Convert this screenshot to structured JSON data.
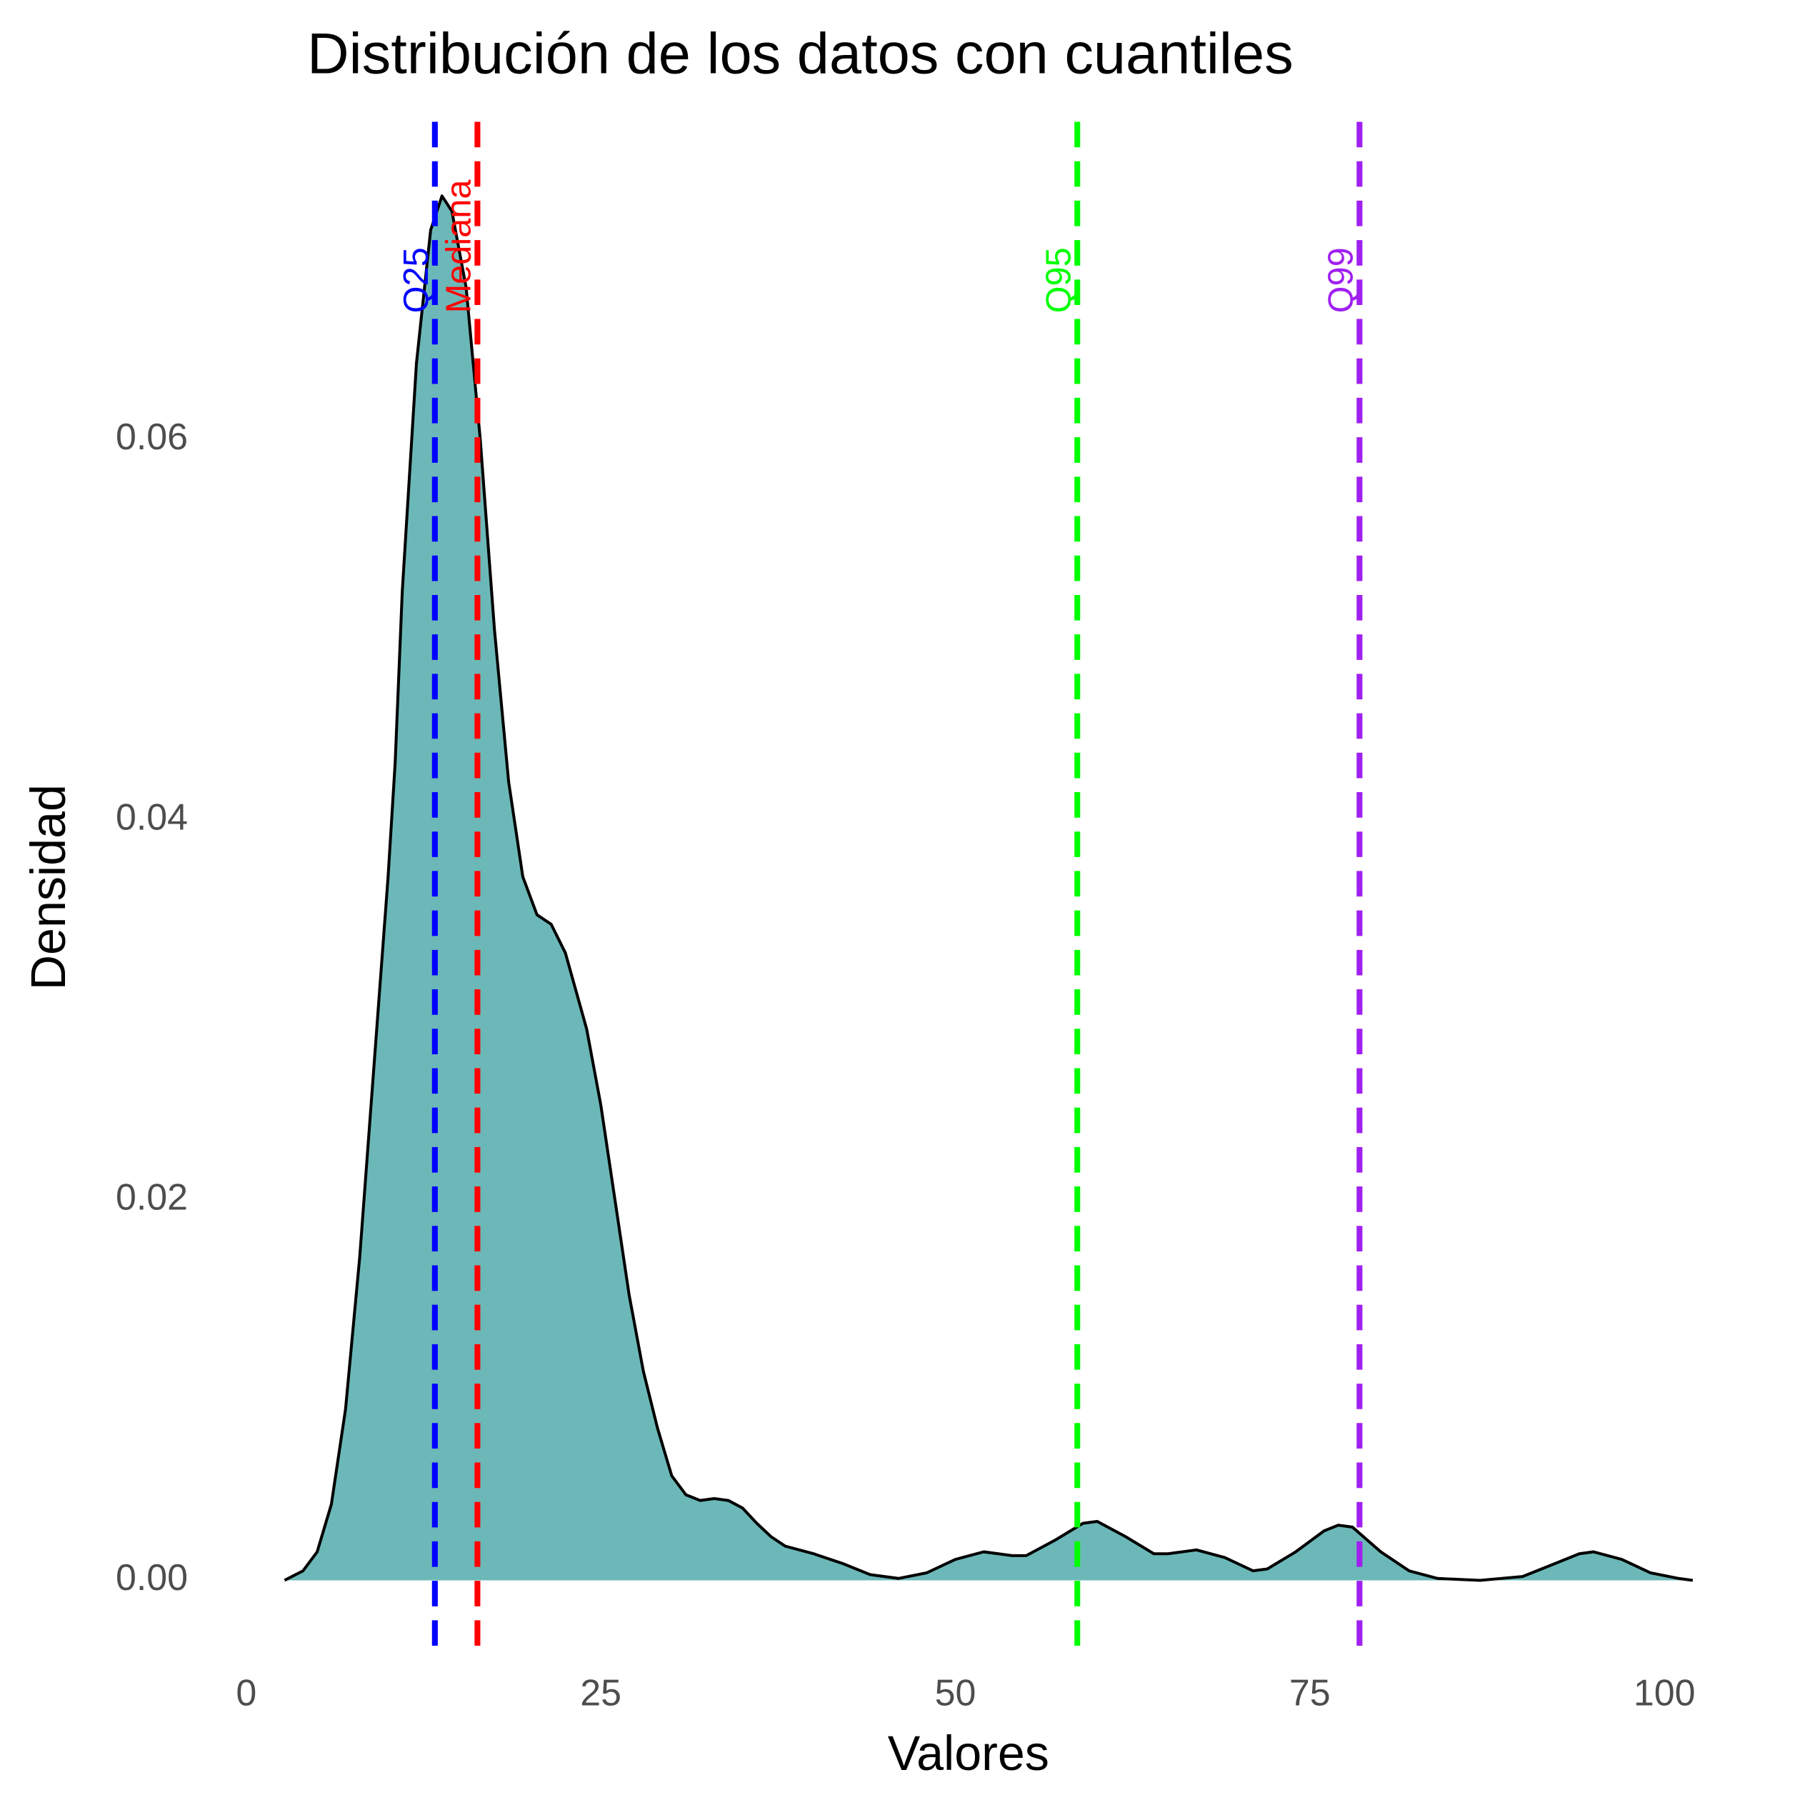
{
  "chart_data": {
    "type": "density",
    "title": "Distribución de los datos con cuantiles",
    "x_label": "Valores",
    "y_label": "Densidad",
    "fill": "#6cb8b8",
    "line_color": "#000000",
    "grid": false,
    "xlim": [
      -1.5,
      104
    ],
    "ylim": [
      -0.0035,
      0.0767
    ],
    "xticks": [
      0,
      25,
      50,
      75,
      100
    ],
    "yticks": [
      {
        "value": 0,
        "label": "0.00"
      },
      0.02,
      0.04,
      0.06
    ],
    "x": [
      2.7,
      4,
      5,
      6,
      7,
      8,
      9,
      10,
      10.5,
      11,
      12,
      13,
      13.8,
      14.5,
      15.5,
      16.5,
      17.5,
      18.5,
      19.5,
      20.5,
      21.5,
      22.5,
      24,
      25,
      26,
      27,
      28,
      29,
      30,
      31,
      32,
      33,
      34,
      35,
      36,
      37,
      38,
      40,
      42,
      44,
      46,
      48,
      50,
      52,
      54,
      55,
      57,
      59,
      60,
      62,
      64,
      65,
      67,
      69,
      71,
      72,
      74,
      76,
      77,
      78,
      80,
      82,
      84,
      87,
      90,
      92,
      94,
      95,
      97,
      99,
      101,
      102
    ],
    "values": [
      0,
      0.0005,
      0.0015,
      0.004,
      0.009,
      0.017,
      0.027,
      0.037,
      0.043,
      0.052,
      0.064,
      0.071,
      0.0728,
      0.072,
      0.068,
      0.06,
      0.05,
      0.042,
      0.037,
      0.035,
      0.0345,
      0.033,
      0.029,
      0.025,
      0.02,
      0.015,
      0.011,
      0.008,
      0.0055,
      0.0045,
      0.0042,
      0.0043,
      0.0042,
      0.0038,
      0.003,
      0.0023,
      0.0018,
      0.0014,
      0.0009,
      0.0003,
      0.0001,
      0.0004,
      0.0011,
      0.0015,
      0.0013,
      0.0013,
      0.0021,
      0.003,
      0.0031,
      0.0023,
      0.0014,
      0.0014,
      0.0016,
      0.0012,
      0.0005,
      0.0006,
      0.0015,
      0.0026,
      0.0029,
      0.0028,
      0.0015,
      0.0005,
      0.0001,
      0,
      0.0002,
      0.0008,
      0.0014,
      0.0015,
      0.0011,
      0.0004,
      0.0001,
      0
    ],
    "vlines": [
      {
        "label": "Q25",
        "value": 13.3,
        "color": "#0000ff"
      },
      {
        "label": "Mediana",
        "value": 16.3,
        "color": "#ff0000"
      },
      {
        "label": "Q95",
        "value": 58.6,
        "color": "#00ff00"
      },
      {
        "label": "Q99",
        "value": 78.5,
        "color": "#a020f0"
      }
    ]
  }
}
